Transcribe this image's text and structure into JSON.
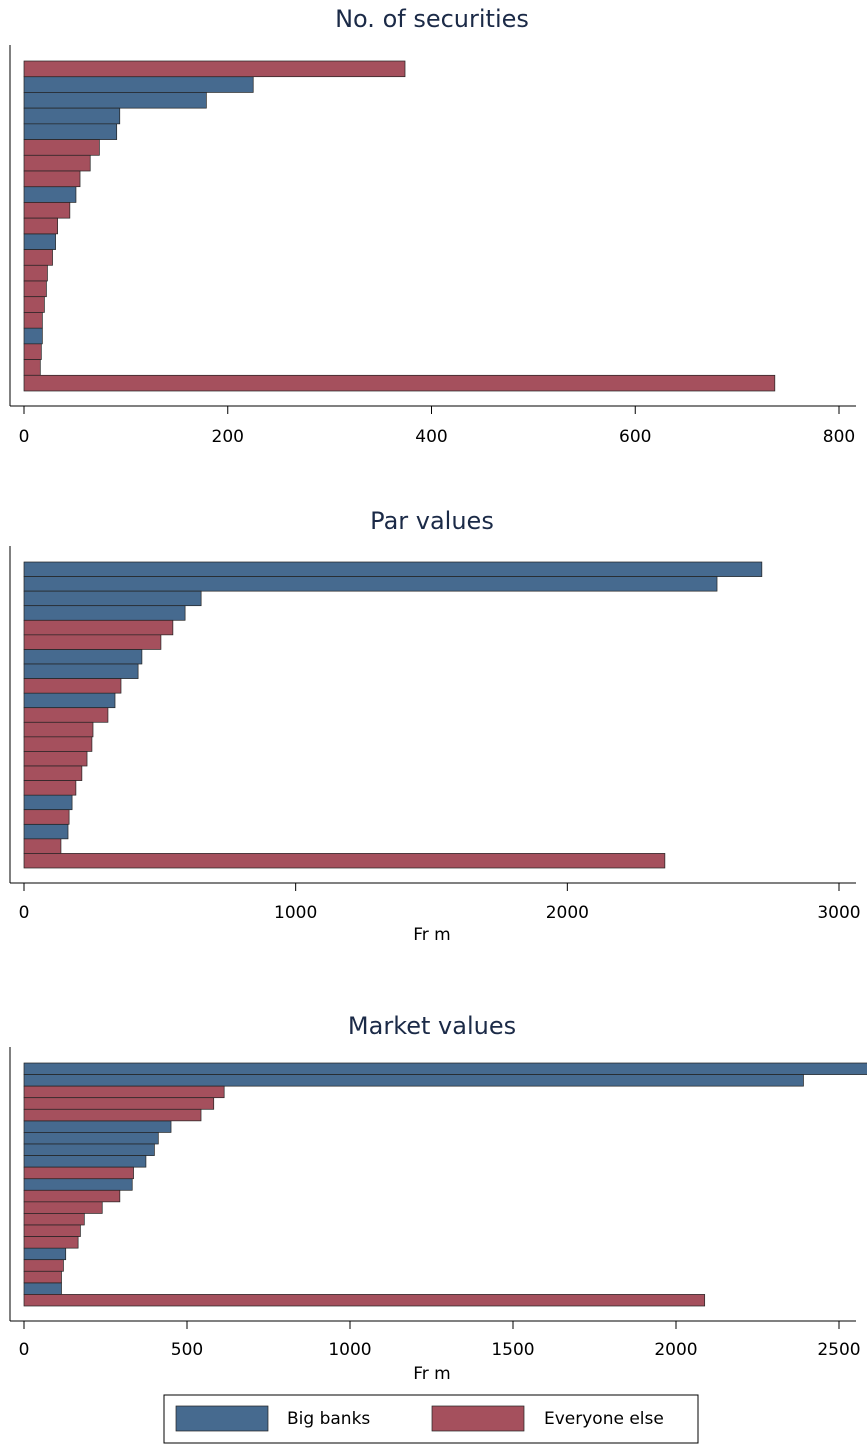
{
  "legend": [
    {
      "name": "Big banks",
      "color": "#466a8f"
    },
    {
      "name": "Everyone else",
      "color": "#a5505d"
    }
  ],
  "chart_data": [
    {
      "type": "bar",
      "orientation": "horizontal",
      "title": "No. of securities",
      "categories": [
        null,
        null,
        null,
        null,
        null,
        null,
        null,
        null,
        null,
        null,
        null,
        null,
        null,
        null,
        null,
        null,
        null,
        null,
        null,
        null,
        null
      ],
      "series": [
        {
          "values": [
            null,
            225,
            179,
            94,
            91,
            null,
            null,
            null,
            51,
            null,
            null,
            31,
            null,
            null,
            null,
            null,
            null,
            18,
            null,
            null,
            null
          ]
        },
        {
          "values": [
            374,
            null,
            null,
            null,
            null,
            74,
            65,
            55,
            null,
            45,
            33,
            null,
            28,
            23,
            22,
            20,
            18,
            null,
            17,
            16,
            737
          ]
        }
      ],
      "xlim": [
        0,
        800
      ],
      "xticks": [
        0,
        200,
        400,
        600,
        800
      ]
    },
    {
      "type": "bar",
      "orientation": "horizontal",
      "title": "Par values",
      "xlabel": "Fr m",
      "categories": [
        null,
        null,
        null,
        null,
        null,
        null,
        null,
        null,
        null,
        null,
        null,
        null,
        null,
        null,
        null,
        null,
        null,
        null,
        null,
        null,
        null
      ],
      "series": [
        {
          "values": [
            2716,
            2551,
            652,
            593,
            null,
            null,
            434,
            420,
            null,
            335,
            null,
            null,
            null,
            null,
            null,
            null,
            177,
            null,
            162,
            null,
            null
          ]
        },
        {
          "values": [
            null,
            null,
            null,
            null,
            548,
            504,
            null,
            null,
            357,
            null,
            309,
            254,
            250,
            232,
            213,
            191,
            null,
            166,
            null,
            136,
            2359
          ]
        }
      ],
      "xlim": [
        0,
        3000
      ],
      "xticks": [
        0,
        1000,
        2000,
        3000
      ]
    },
    {
      "type": "bar",
      "orientation": "horizontal",
      "title": "Market values",
      "xlabel": "Fr m",
      "categories": [
        null,
        null,
        null,
        null,
        null,
        null,
        null,
        null,
        null,
        null,
        null,
        null,
        null,
        null,
        null,
        null,
        null,
        null,
        null,
        null,
        null
      ],
      "series": [
        {
          "values": [
            2606,
            2391,
            null,
            null,
            null,
            451,
            412,
            400,
            374,
            null,
            332,
            null,
            null,
            null,
            null,
            null,
            128,
            null,
            null,
            115,
            null
          ]
        },
        {
          "values": [
            null,
            null,
            614,
            582,
            543,
            null,
            null,
            null,
            null,
            336,
            null,
            294,
            240,
            185,
            173,
            166,
            null,
            121,
            115,
            null,
            2088
          ]
        }
      ],
      "xlim": [
        0,
        2500
      ],
      "xticks": [
        0,
        500,
        1000,
        1500,
        2000,
        2500
      ]
    }
  ]
}
